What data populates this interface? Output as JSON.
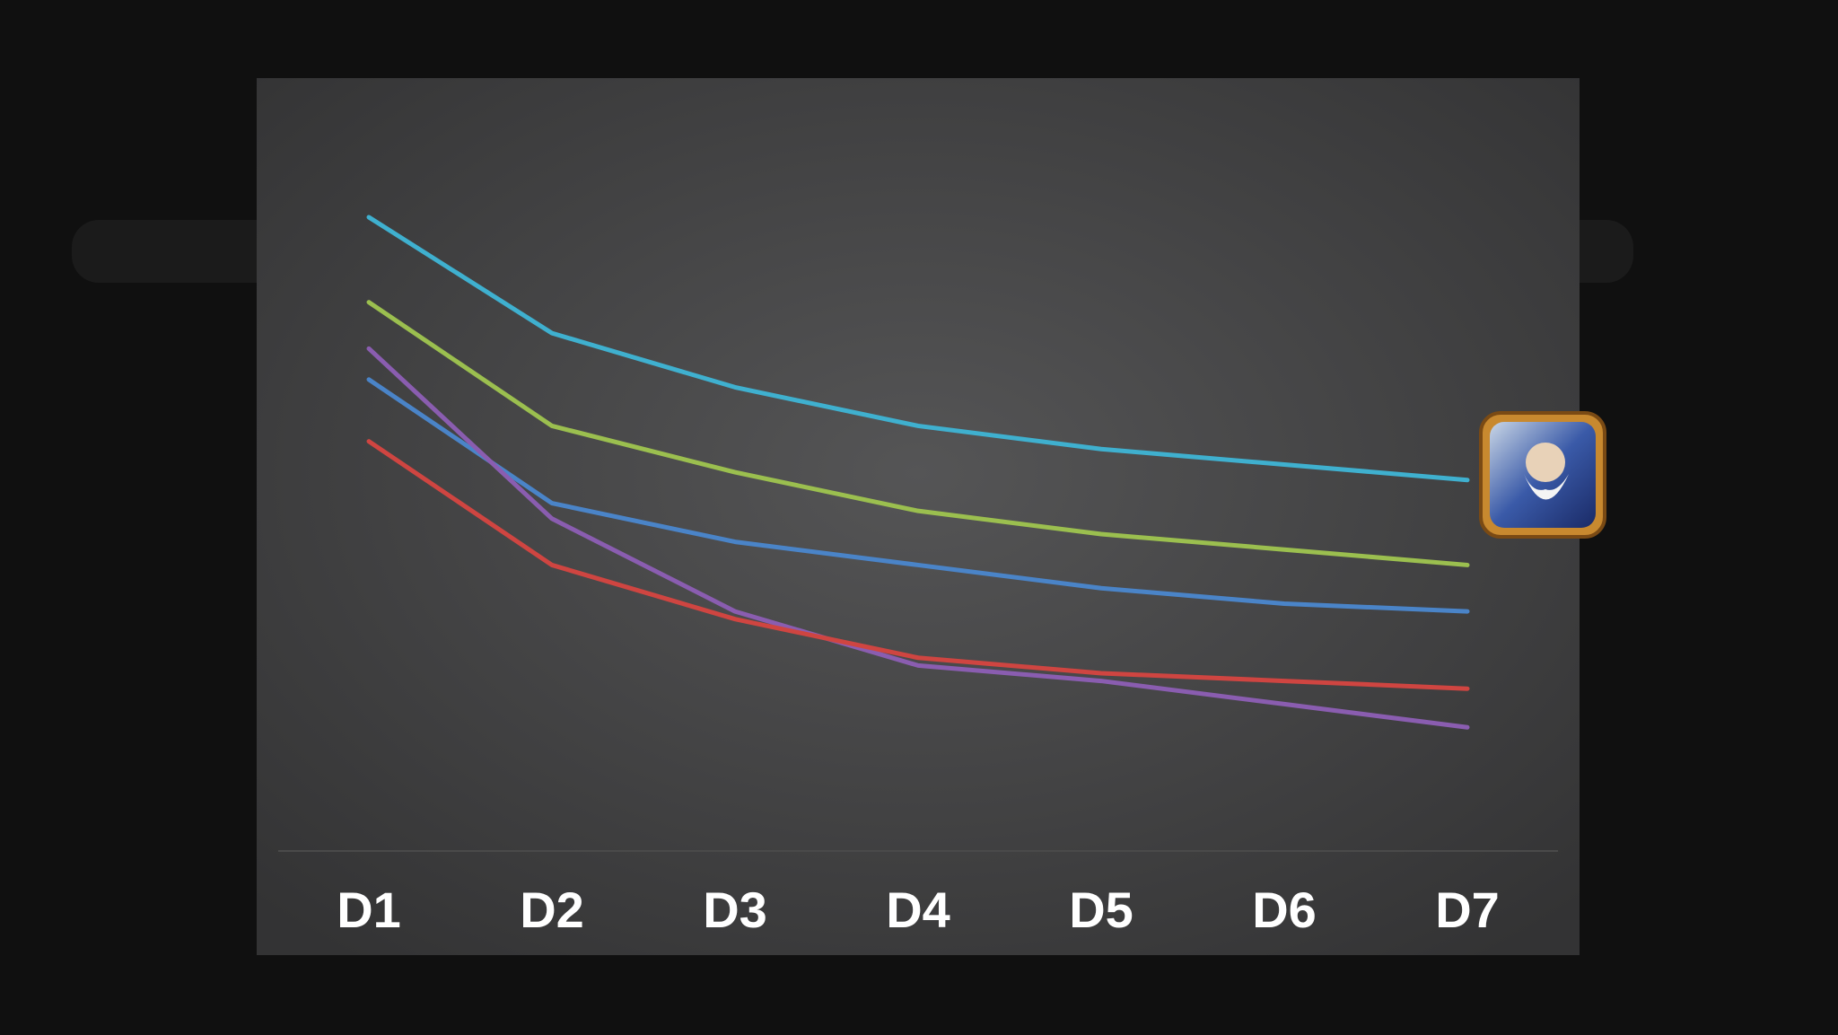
{
  "chart_data": {
    "type": "line",
    "categories": [
      "D1",
      "D2",
      "D3",
      "D4",
      "D5",
      "D6",
      "D7"
    ],
    "series": [
      {
        "color": "#3fb0cf",
        "values": [
          82,
          67,
          60,
          55,
          52,
          50,
          48
        ]
      },
      {
        "color": "#9bbf4f",
        "values": [
          71,
          55,
          49,
          44,
          41,
          39,
          37
        ]
      },
      {
        "color": "#4a84c8",
        "values": [
          61,
          45,
          40,
          37,
          34,
          32,
          31
        ]
      },
      {
        "color": "#8a5db0",
        "values": [
          65,
          43,
          31,
          24,
          22,
          19,
          16
        ]
      },
      {
        "color": "#cf4541",
        "values": [
          53,
          37,
          30,
          25,
          23,
          22,
          21
        ]
      }
    ],
    "ylim": [
      0,
      100
    ]
  }
}
